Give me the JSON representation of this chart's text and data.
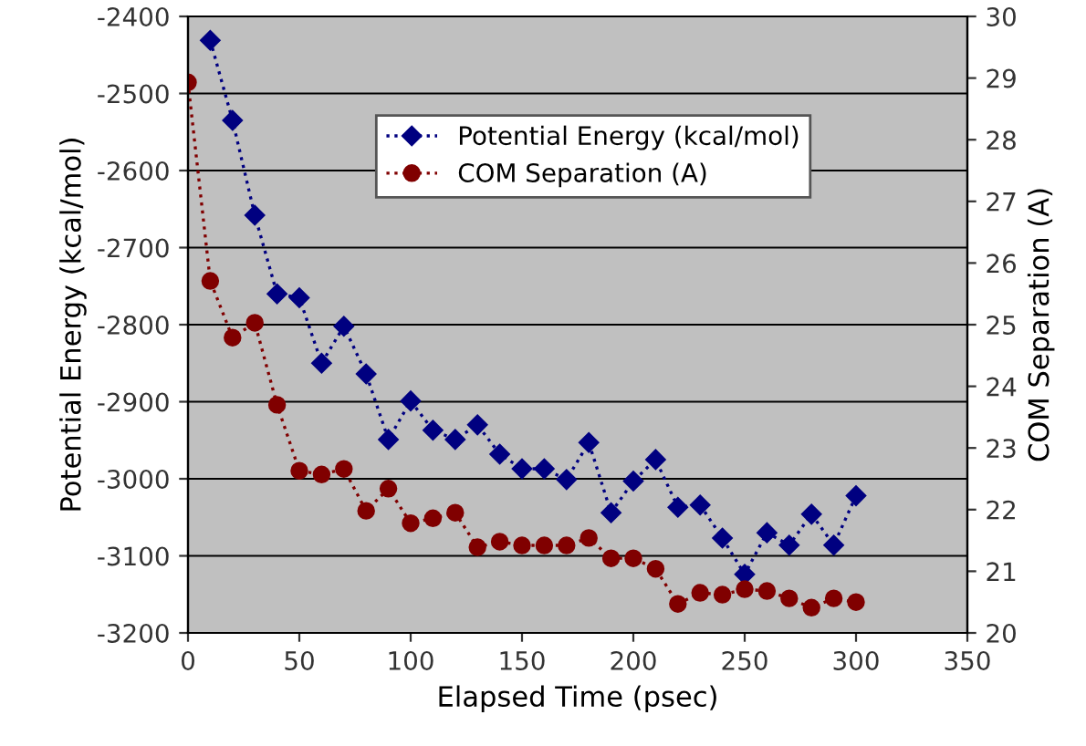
{
  "chart_data": {
    "type": "line",
    "xlabel": "Elapsed Time (psec)",
    "ylabel": "Potential Energy (kcal/mol)",
    "y2label": "COM Separation (A)",
    "xlim": [
      0,
      350
    ],
    "xticks": [
      0,
      50,
      100,
      150,
      200,
      250,
      300,
      350
    ],
    "ylim": [
      -3200,
      -2400
    ],
    "yticks": [
      -3200,
      -3100,
      -3000,
      -2900,
      -2800,
      -2700,
      -2600,
      -2500,
      -2400
    ],
    "y2lim": [
      20,
      30
    ],
    "y2ticks": [
      20,
      21,
      22,
      23,
      24,
      25,
      26,
      27,
      28,
      29,
      30
    ],
    "grid": "y",
    "legend": "top",
    "line_style": "dotted",
    "series": [
      {
        "name": "Potential Energy (kcal/mol)",
        "color": "#000080",
        "marker": "diamond",
        "x": [
          10,
          20,
          30,
          40,
          50,
          60,
          70,
          80,
          90,
          100,
          110,
          120,
          130,
          140,
          150,
          160,
          170,
          180,
          190,
          200,
          210,
          220,
          230,
          240,
          250,
          260,
          270,
          280,
          290,
          300
        ],
        "values": [
          -2431,
          -2535,
          -2658,
          -2760,
          -2765,
          -2850,
          -2802,
          -2864,
          -2949,
          -2899,
          -2937,
          -2949,
          -2930,
          -2968,
          -2987,
          -2987,
          -3001,
          -2953,
          -3044,
          -3003,
          -2975,
          -3037,
          -3034,
          -3077,
          -3124,
          -3070,
          -3086,
          -3046,
          -3086,
          -3022
        ]
      },
      {
        "name": "COM Separation (A)",
        "color": "#800000",
        "marker": "circle",
        "axis": "y2",
        "x": [
          0,
          10,
          20,
          30,
          40,
          50,
          60,
          70,
          80,
          90,
          100,
          110,
          120,
          130,
          140,
          150,
          160,
          170,
          180,
          190,
          200,
          210,
          220,
          230,
          240,
          250,
          260,
          270,
          280,
          290,
          300
        ],
        "values": [
          28.93,
          25.71,
          24.79,
          25.03,
          23.7,
          22.63,
          22.57,
          22.66,
          21.98,
          22.34,
          21.78,
          21.86,
          21.95,
          21.39,
          21.48,
          21.42,
          21.42,
          21.42,
          21.54,
          21.21,
          21.21,
          21.04,
          20.47,
          20.65,
          20.62,
          20.71,
          20.68,
          20.56,
          20.41,
          20.56,
          20.5
        ]
      }
    ]
  }
}
